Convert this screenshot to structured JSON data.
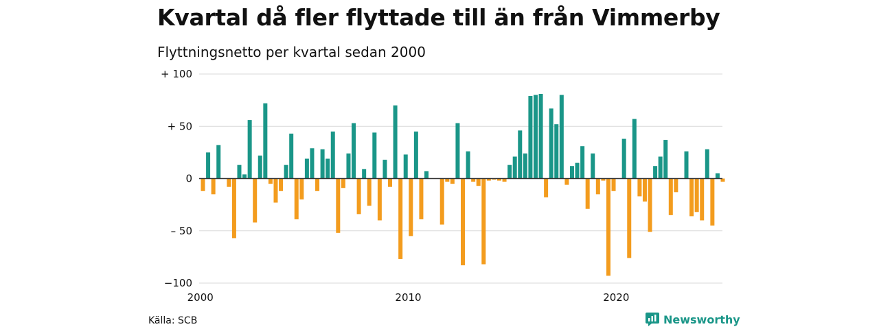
{
  "title": "Kvartal då fler flyttade till än från Vimmerby",
  "subtitle": "Flyttningsnetto per kvartal sedan 2000",
  "source": "Källa: SCB",
  "brand": {
    "name": "Newsworthy",
    "icon": "newsworthy-logo-icon"
  },
  "colors": {
    "positive": "#1a9688",
    "negative": "#f39c1e",
    "grid": "#d9d9d9",
    "zero_line": "#333333"
  },
  "chart_data": {
    "type": "bar",
    "title": "Kvartal då fler flyttade till än från Vimmerby",
    "subtitle": "Flyttningsnetto per kvartal sedan 2000",
    "xlabel": "",
    "ylabel": "",
    "ylim": [
      -100,
      100
    ],
    "yticks": [
      100,
      50,
      0,
      -50,
      -100
    ],
    "ytick_labels": [
      "+ 100",
      "+  50",
      "0",
      "– 50",
      "−100"
    ],
    "xticks": [
      "2000",
      "2010",
      "2020"
    ],
    "first_quarter": "2000 Q1",
    "last_quarter": "2025 Q1",
    "grid": true,
    "values": [
      -12,
      25,
      -15,
      32,
      0,
      -8,
      -57,
      13,
      4,
      56,
      -42,
      22,
      72,
      -5,
      -23,
      -12,
      13,
      43,
      -39,
      -20,
      19,
      29,
      -12,
      28,
      19,
      45,
      -52,
      -9,
      24,
      53,
      -34,
      9,
      -26,
      44,
      -40,
      18,
      -8,
      70,
      -77,
      23,
      -55,
      45,
      -39,
      7,
      0,
      0,
      -44,
      -3,
      -5,
      53,
      -83,
      26,
      -3,
      -7,
      -82,
      -2,
      -1,
      -2,
      -3,
      13,
      21,
      46,
      24,
      79,
      80,
      81,
      -18,
      67,
      52,
      80,
      -6,
      12,
      15,
      31,
      -29,
      24,
      -15,
      -2,
      -93,
      -12,
      0,
      38,
      -76,
      57,
      -17,
      -22,
      -51,
      12,
      21,
      37,
      -35,
      -13,
      0,
      26,
      -36,
      -32,
      -40,
      28,
      -45,
      5,
      -3
    ]
  }
}
